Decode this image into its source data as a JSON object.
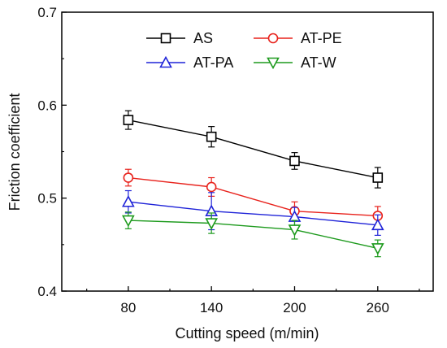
{
  "chart_data": {
    "type": "line",
    "xlabel": "Cutting speed (m/min)",
    "ylabel": "Friction coefficient",
    "x": [
      80,
      140,
      200,
      260
    ],
    "xticks": [
      "80",
      "140",
      "200",
      "260"
    ],
    "xlim": [
      32,
      300
    ],
    "ylim": [
      0.4,
      0.7
    ],
    "yticks": [
      "0.4",
      "0.5",
      "0.6",
      "0.7"
    ],
    "legend_position": "top-left",
    "grid": false,
    "series": [
      {
        "name": "AS",
        "color": "#000000",
        "marker": "square",
        "values": [
          0.584,
          0.566,
          0.54,
          0.522
        ],
        "err": [
          0.01,
          0.011,
          0.009,
          0.011
        ]
      },
      {
        "name": "AT-PE",
        "color": "#e8221c",
        "marker": "circle",
        "values": [
          0.522,
          0.512,
          0.486,
          0.481
        ],
        "err": [
          0.009,
          0.01,
          0.01,
          0.01
        ]
      },
      {
        "name": "AT-PA",
        "color": "#1f23d8",
        "marker": "triangle-up",
        "values": [
          0.496,
          0.486,
          0.48,
          0.471
        ],
        "err": [
          0.012,
          0.02,
          0.01,
          0.011
        ]
      },
      {
        "name": "AT-W",
        "color": "#1d9a1d",
        "marker": "triangle-down",
        "values": [
          0.476,
          0.473,
          0.466,
          0.446
        ],
        "err": [
          0.009,
          0.011,
          0.01,
          0.009
        ]
      }
    ]
  }
}
